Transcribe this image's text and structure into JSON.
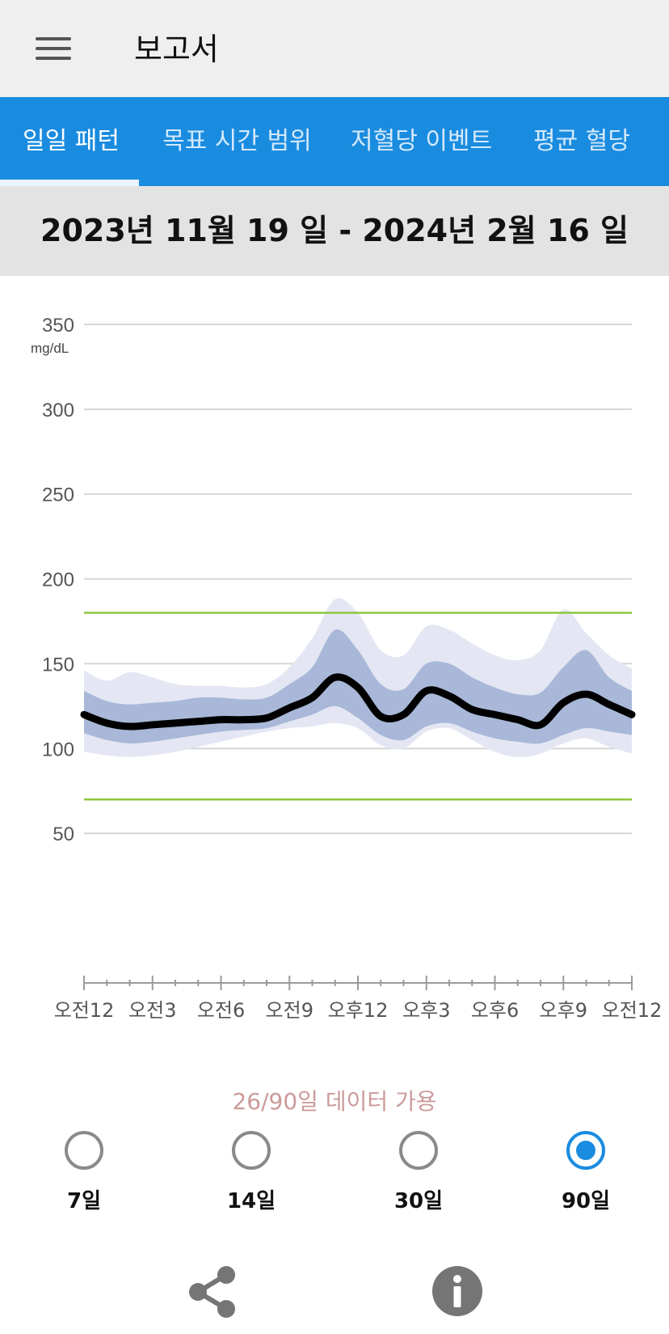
{
  "header": {
    "title": "보고서",
    "menu_icon": "hamburger-menu-icon"
  },
  "tabs": [
    {
      "label": "일일 패턴",
      "active": true
    },
    {
      "label": "목표 시간 범위",
      "active": false
    },
    {
      "label": "저혈당 이벤트",
      "active": false
    },
    {
      "label": "평균 혈당",
      "active": false
    }
  ],
  "date_range": "2023년 11월 19 일 - 2024년 2월 16 일",
  "chart_data": {
    "type": "area",
    "ylabel": "mg/dL",
    "ylim": [
      0,
      350
    ],
    "yticks": [
      350,
      300,
      250,
      200,
      150,
      100,
      50
    ],
    "xlim": [
      0,
      24
    ],
    "xtick_labels": [
      "오전12",
      "오전3",
      "오전6",
      "오전9",
      "오후12",
      "오후3",
      "오후6",
      "오후9",
      "오전12"
    ],
    "target_range": {
      "low": 70,
      "high": 180,
      "color": "#8dc63f"
    },
    "x": [
      0,
      1,
      2,
      3,
      4,
      5,
      6,
      7,
      8,
      9,
      10,
      11,
      12,
      13,
      14,
      15,
      16,
      17,
      18,
      19,
      20,
      21,
      22,
      23,
      24
    ],
    "series": [
      {
        "role": "median",
        "color": "#000000",
        "values": [
          120,
          115,
          113,
          114,
          115,
          116,
          117,
          117,
          118,
          124,
          130,
          142,
          136,
          119,
          120,
          134,
          131,
          123,
          120,
          117,
          114,
          127,
          132,
          126,
          120
        ]
      },
      {
        "role": "p25",
        "color": "#a9b8d8",
        "values": [
          109,
          105,
          103,
          104,
          106,
          108,
          110,
          111,
          112,
          116,
          120,
          125,
          118,
          108,
          105,
          113,
          115,
          110,
          106,
          104,
          103,
          108,
          112,
          110,
          108
        ]
      },
      {
        "role": "p75",
        "color": "#a9b8d8",
        "values": [
          134,
          128,
          126,
          127,
          128,
          130,
          130,
          129,
          130,
          138,
          148,
          170,
          158,
          138,
          135,
          150,
          150,
          142,
          136,
          132,
          133,
          148,
          158,
          142,
          134
        ]
      },
      {
        "role": "p10",
        "color": "#e4e7f3",
        "values": [
          98,
          96,
          95,
          96,
          98,
          101,
          104,
          107,
          110,
          112,
          113,
          115,
          112,
          102,
          100,
          110,
          112,
          105,
          98,
          95,
          97,
          103,
          106,
          101,
          97
        ]
      },
      {
        "role": "p90",
        "color": "#e4e7f3",
        "values": [
          146,
          140,
          145,
          142,
          138,
          137,
          137,
          136,
          138,
          148,
          165,
          188,
          180,
          158,
          155,
          172,
          170,
          162,
          155,
          152,
          158,
          182,
          168,
          155,
          147
        ]
      }
    ]
  },
  "availability_text": "26/90일 데이터 가용",
  "period_options": [
    {
      "label": "7일",
      "selected": false
    },
    {
      "label": "14일",
      "selected": false
    },
    {
      "label": "30일",
      "selected": false
    },
    {
      "label": "90일",
      "selected": true
    }
  ],
  "footer": {
    "share_icon": "share-icon",
    "info_icon": "info-icon"
  }
}
